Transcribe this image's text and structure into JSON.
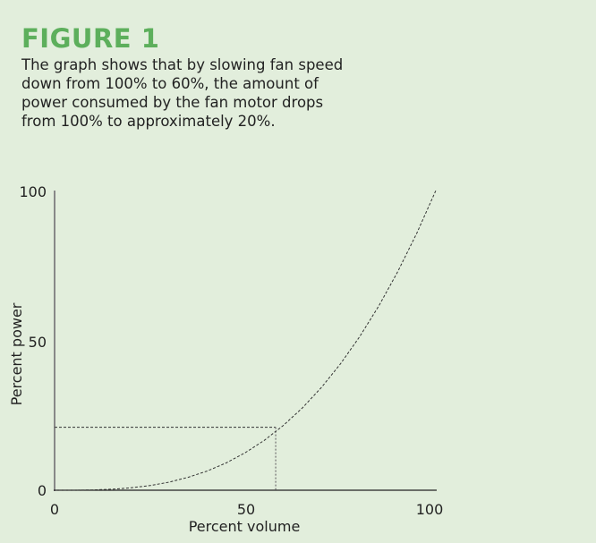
{
  "header": {
    "title": "FIGURE 1",
    "caption": "The graph shows that by slowing fan speed down from 100% to 60%, the amount of power consumed by the fan motor drops from 100% to approximately 20%."
  },
  "colors": {
    "background": "#e2eedc",
    "title": "#5daf5c",
    "curve": "#333333"
  },
  "chart_data": {
    "type": "line",
    "xlabel": "Percent volume",
    "ylabel": "Percent power",
    "xlim": [
      0,
      100
    ],
    "ylim": [
      0,
      100
    ],
    "xticks": [
      "0",
      "50",
      "100"
    ],
    "yticks": [
      "0",
      "50",
      "100"
    ],
    "grid": false,
    "series": [
      {
        "style": "dashed",
        "x": [
          0,
          5,
          10,
          15,
          20,
          25,
          30,
          35,
          40,
          45,
          50,
          55,
          60,
          65,
          70,
          75,
          80,
          85,
          90,
          95,
          100
        ],
        "y": [
          0,
          0.0125,
          0.1,
          0.34,
          0.8,
          1.56,
          2.7,
          4.29,
          6.4,
          9.11,
          12.5,
          16.64,
          21.6,
          27.46,
          34.3,
          42.19,
          51.2,
          61.41,
          72.9,
          85.74,
          100
        ]
      }
    ],
    "reference_point": {
      "x": 58,
      "y": 21,
      "style": "dotted guide lines to both axes"
    }
  }
}
